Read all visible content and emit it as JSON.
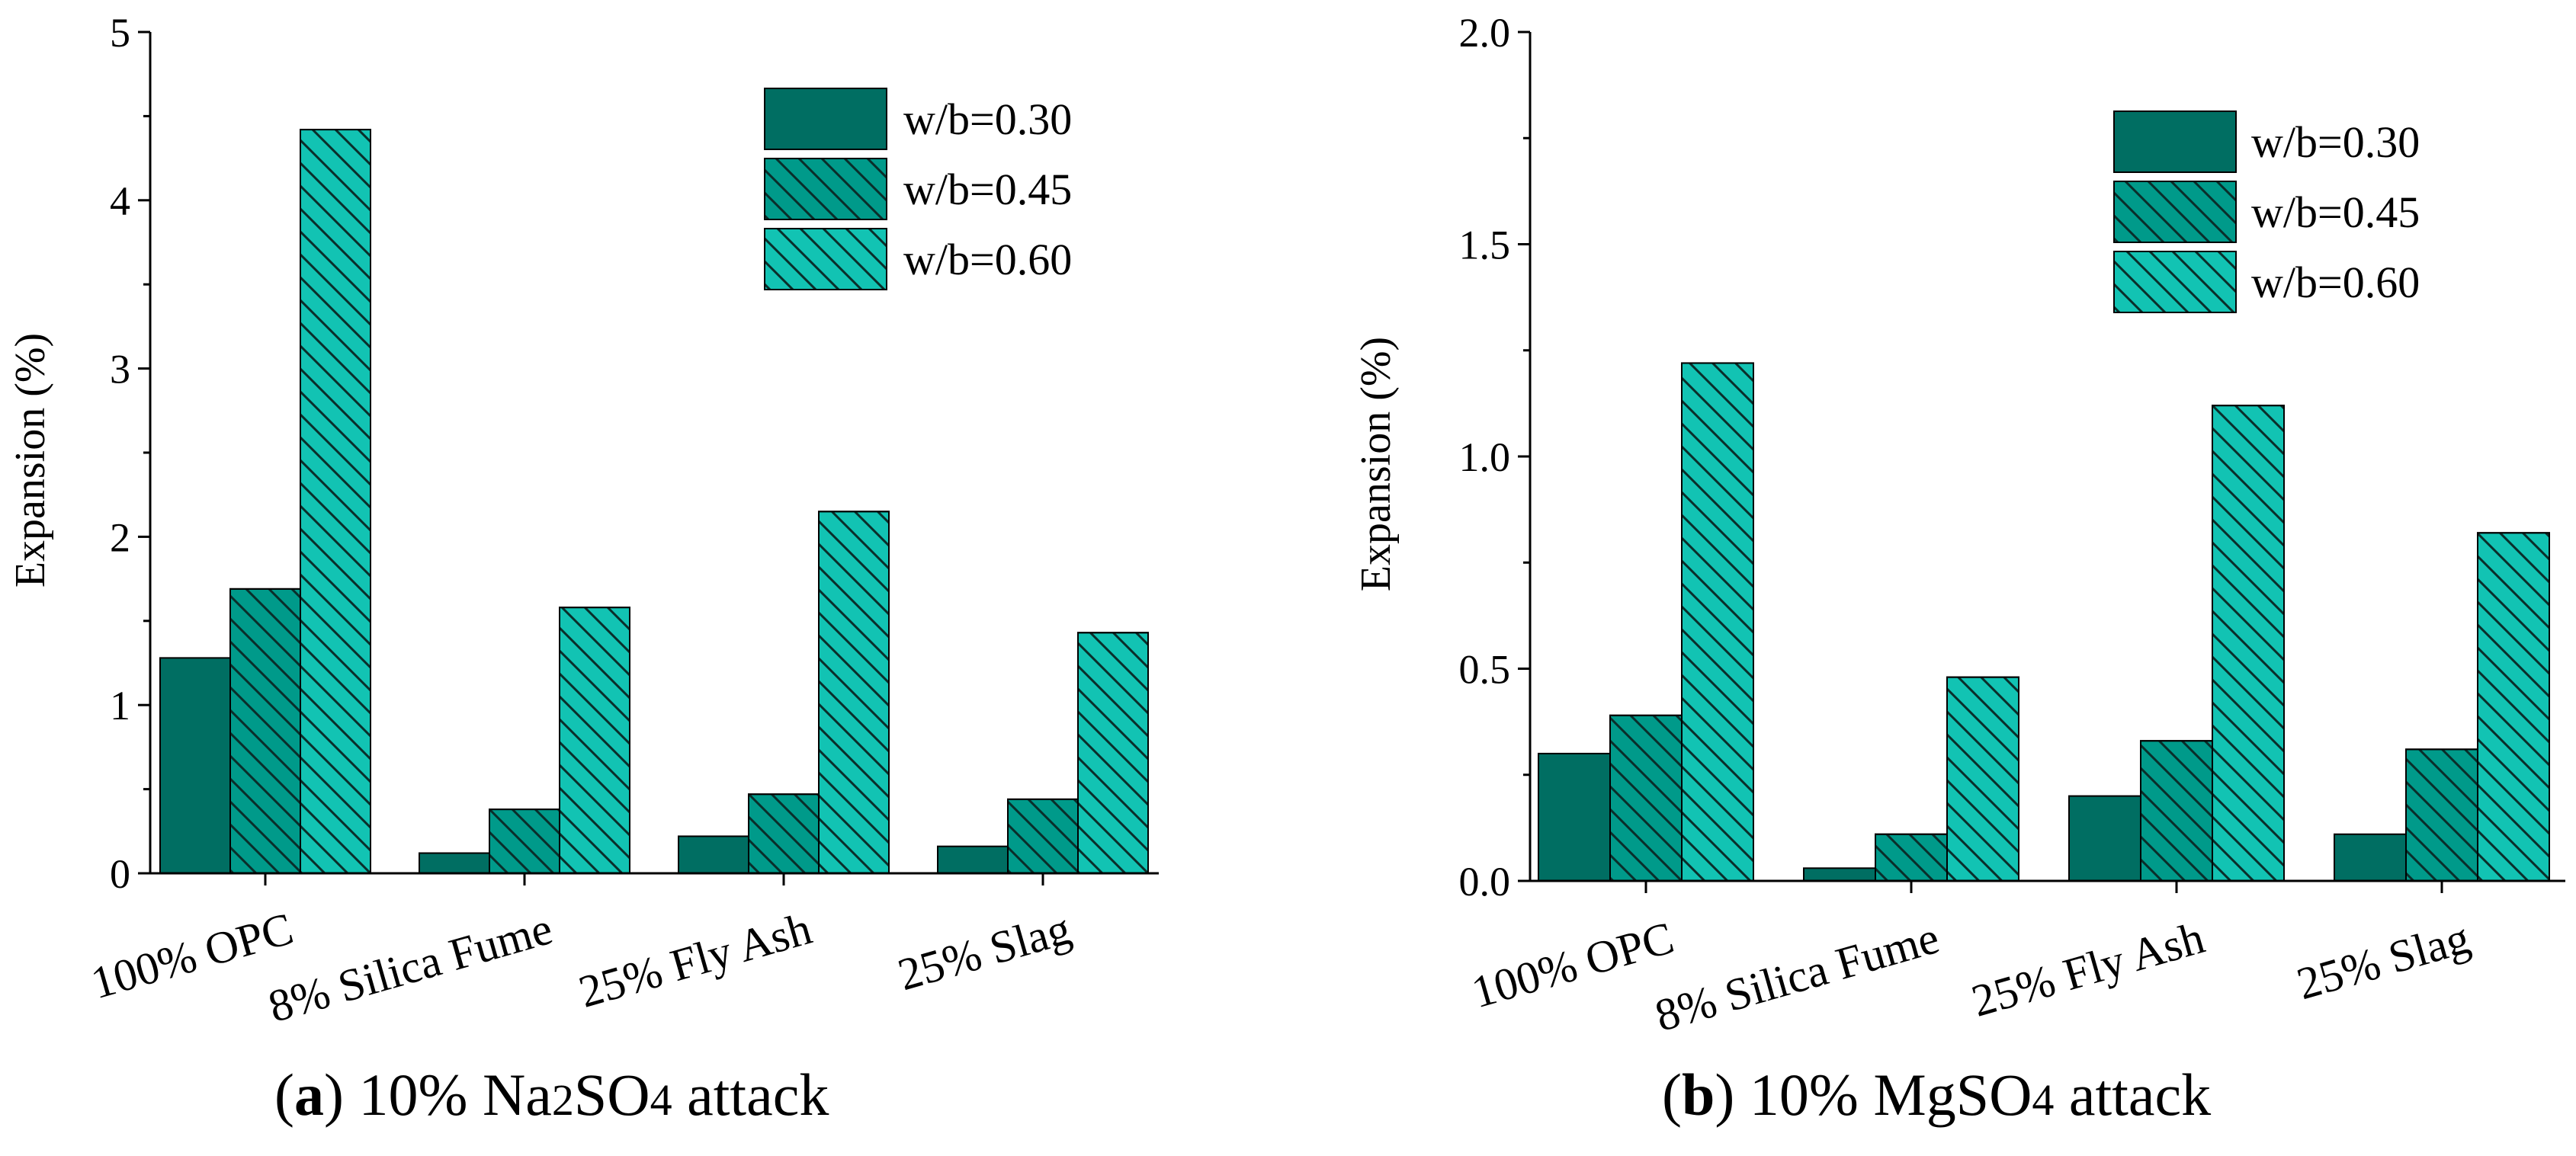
{
  "colors": {
    "w030": "#006e62",
    "w045": "#009a8a",
    "w060": "#12c3b3",
    "hatch": "#0a2e2a",
    "axis": "#000000"
  },
  "chart_data": [
    {
      "type": "bar",
      "id": "a",
      "caption": {
        "label": "a",
        "prefix": "10% Na",
        "sub1": "2",
        "mid": "SO",
        "sub2": "4",
        "suffix": " attack"
      },
      "categories": [
        "100% OPC",
        "8% Silica Fume",
        "25% Fly Ash",
        "25% Slag"
      ],
      "series": [
        {
          "name": "w/b=0.30",
          "values": [
            1.28,
            0.12,
            0.22,
            0.16
          ]
        },
        {
          "name": "w/b=0.45",
          "values": [
            1.69,
            0.38,
            0.47,
            0.44
          ]
        },
        {
          "name": "w/b=0.60",
          "values": [
            4.42,
            1.58,
            2.15,
            1.43
          ]
        }
      ],
      "title": "",
      "xlabel": "",
      "ylabel": "Expansion (%)",
      "ylim": [
        0,
        5
      ],
      "yticks": [
        "0",
        "1",
        "2",
        "3",
        "4",
        "5"
      ],
      "legend_position": "top-right"
    },
    {
      "type": "bar",
      "id": "b",
      "caption": {
        "label": "b",
        "prefix": "10% Mg",
        "sub1": "",
        "mid": "SO",
        "sub2": "4",
        "suffix": " attack"
      },
      "categories": [
        "100% OPC",
        "8% Silica Fume",
        "25% Fly Ash",
        "25% Slag"
      ],
      "series": [
        {
          "name": "w/b=0.30",
          "values": [
            0.3,
            0.03,
            0.2,
            0.11
          ]
        },
        {
          "name": "w/b=0.45",
          "values": [
            0.39,
            0.11,
            0.33,
            0.31
          ]
        },
        {
          "name": "w/b=0.60",
          "values": [
            1.22,
            0.48,
            1.12,
            0.82
          ]
        }
      ],
      "title": "",
      "xlabel": "",
      "ylabel": "Expansion (%)",
      "ylim": [
        0,
        2
      ],
      "yticks": [
        "0.0",
        "0.5",
        "1.0",
        "1.5",
        "2.0"
      ],
      "legend_position": "top-right"
    }
  ]
}
